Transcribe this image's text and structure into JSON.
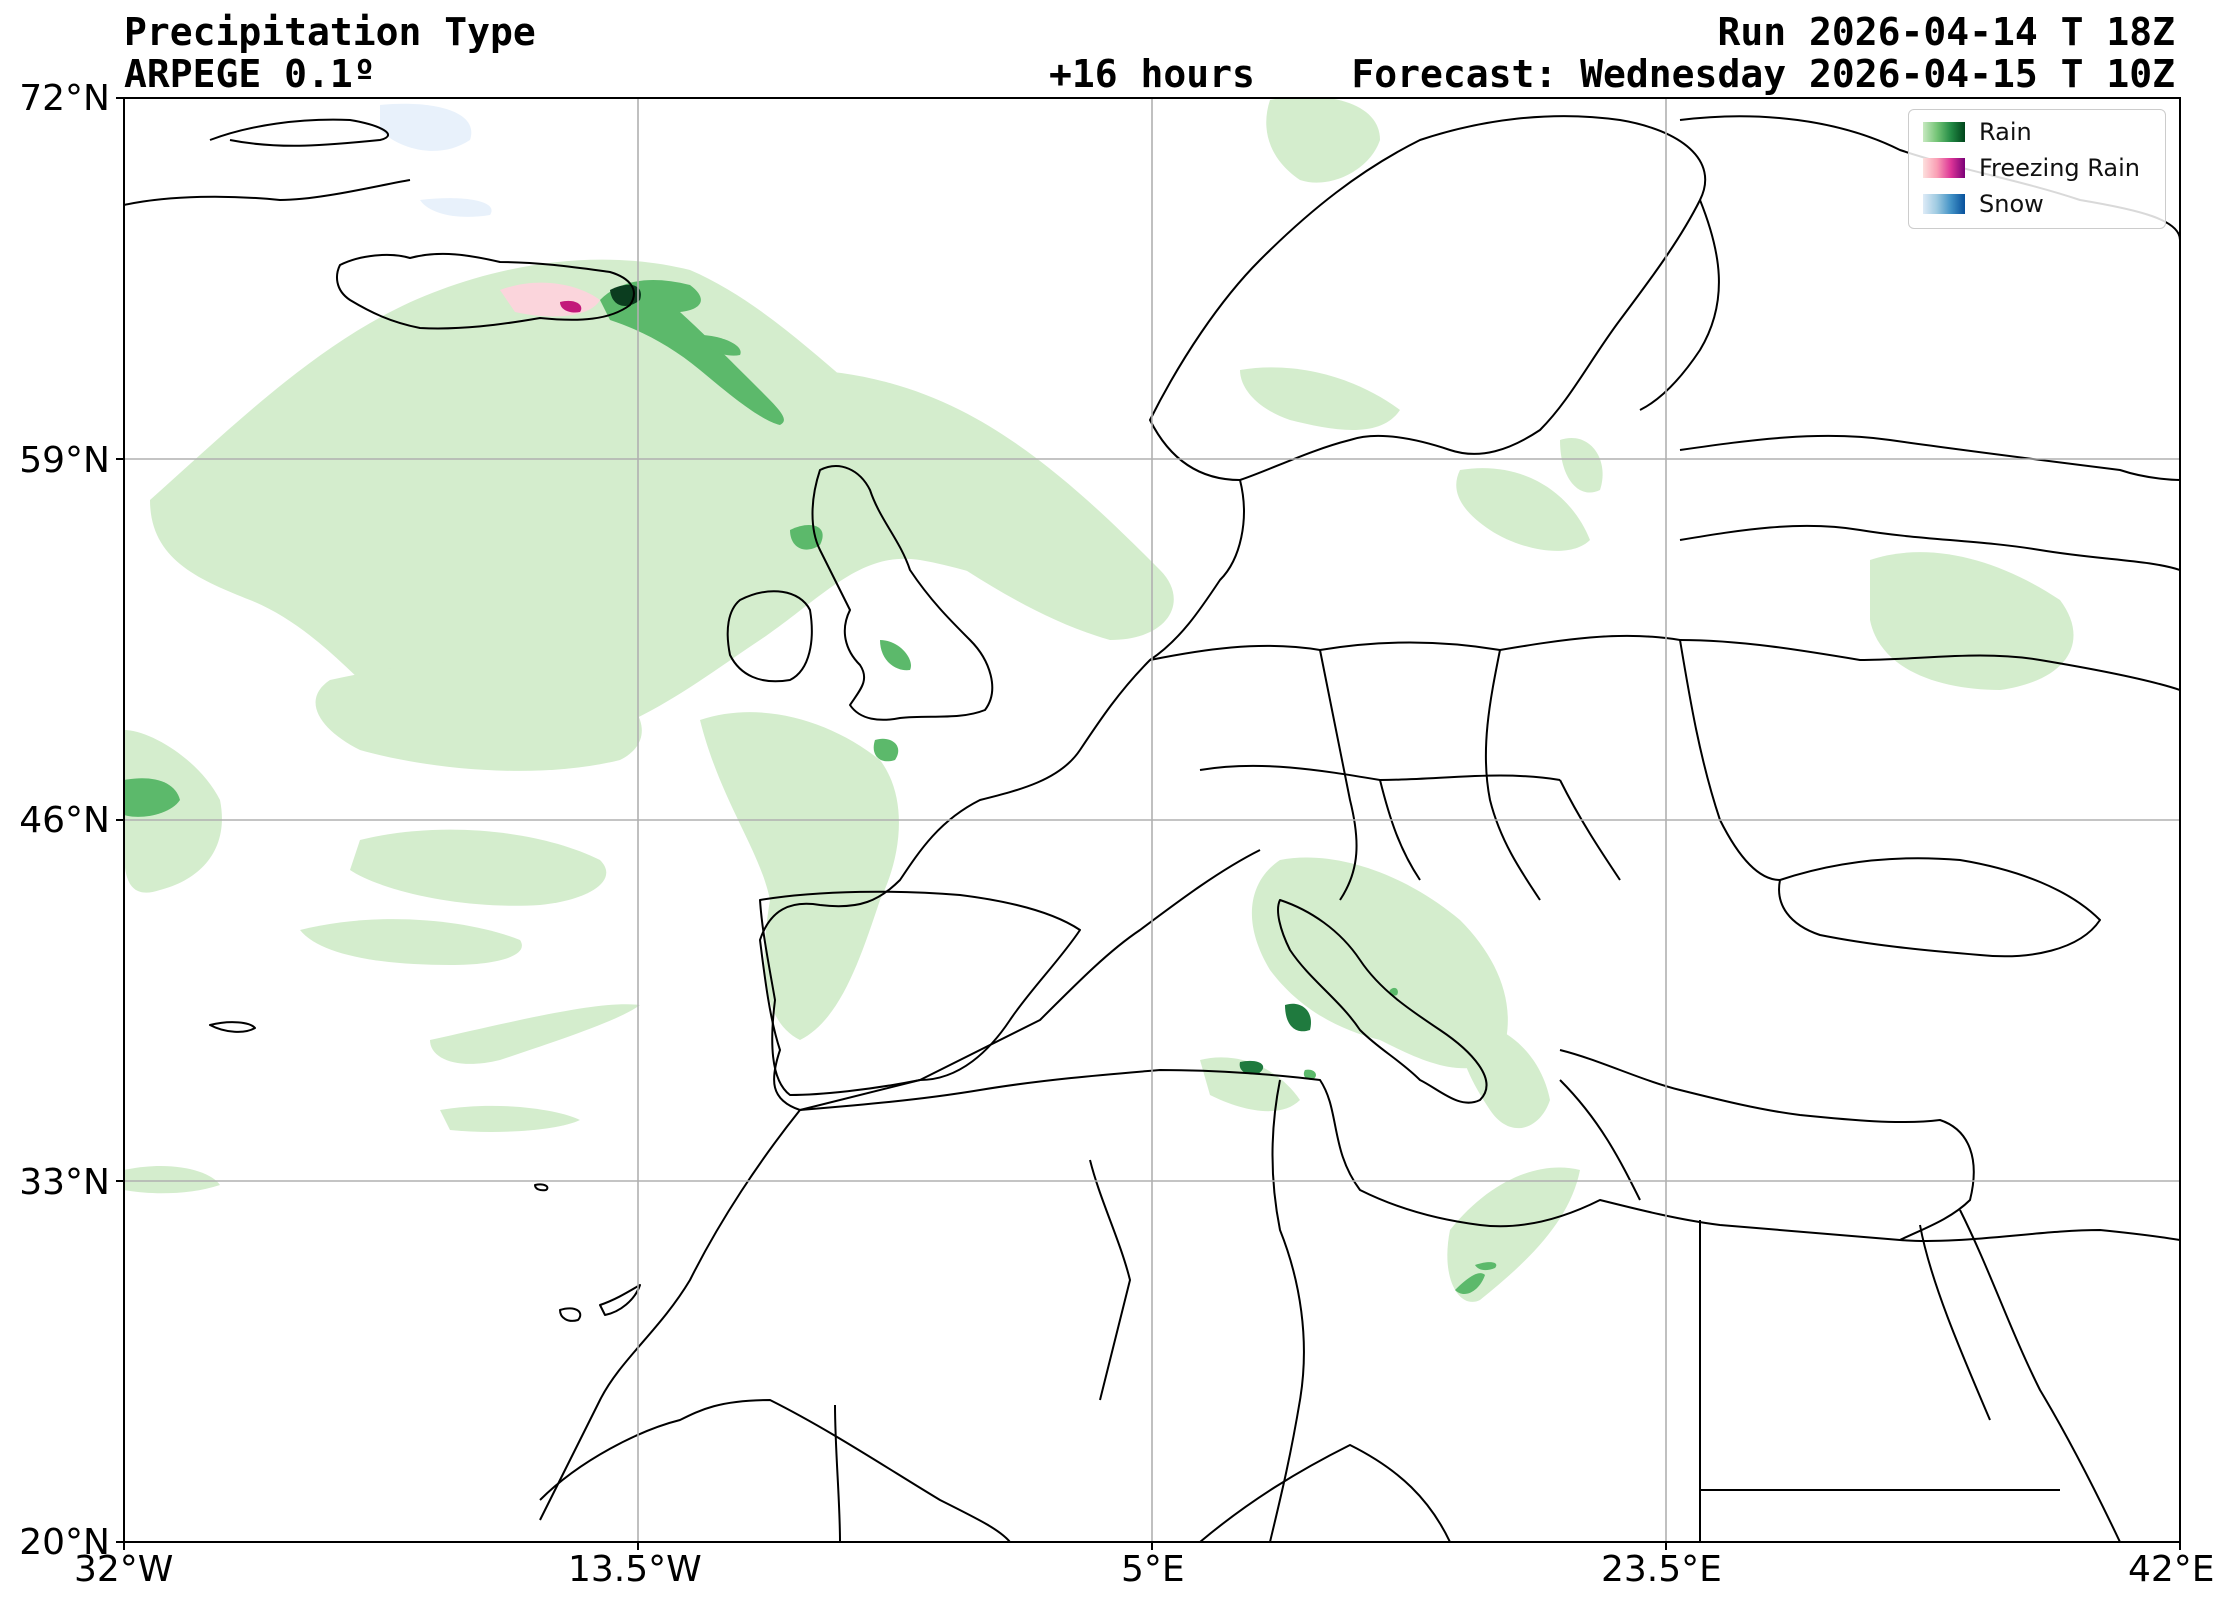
{
  "header": {
    "title": "Precipitation Type",
    "model": "ARPEGE 0.1º",
    "run": "Run 2026-04-14 T 18Z",
    "lead": "+16 hours",
    "forecast": "Forecast: Wednesday 2026-04-15 T 10Z"
  },
  "axes": {
    "lat_labels": [
      "72°N",
      "59°N",
      "46°N",
      "33°N",
      "20°N"
    ],
    "lon_labels": [
      "32°W",
      "13.5°W",
      "5°E",
      "23.5°E",
      "42°E"
    ],
    "lat_range": [
      20,
      72
    ],
    "lon_range": [
      -32,
      42
    ],
    "grid": true
  },
  "legend": {
    "placement": "top-right",
    "items": [
      {
        "label": "Rain",
        "colors": [
          "#c7e9c0",
          "#74c476",
          "#238b45",
          "#00441b"
        ]
      },
      {
        "label": "Freezing Rain",
        "colors": [
          "#fde0dd",
          "#fa9fb5",
          "#dd3497",
          "#7a0177"
        ]
      },
      {
        "label": "Snow",
        "colors": [
          "#deebf7",
          "#9ecae1",
          "#4292c6",
          "#08519c"
        ]
      }
    ]
  },
  "colors": {
    "rain_light": "#d4edcd",
    "rain_mid": "#5cb96b",
    "rain_dark": "#1f7a3e",
    "rain_darkest": "#0b3d1f",
    "freezing_light": "#fbd5dc",
    "freezing_dark": "#c2187a",
    "snow_light": "#e8f1fb",
    "grid": "#b0b0b0",
    "coast": "#000000"
  }
}
